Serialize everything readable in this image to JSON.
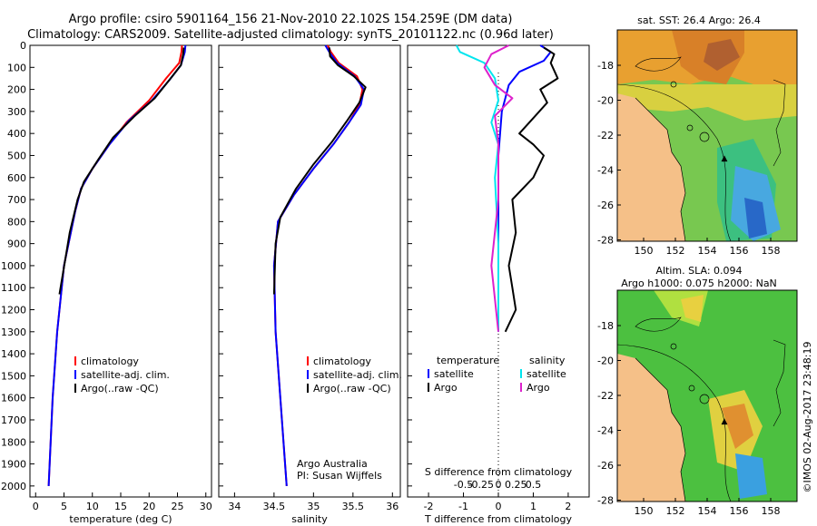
{
  "header": {
    "line1": "Argo profile: csiro 5901164_156 21-Nov-2010 22.102S 154.259E (DM data)",
    "line2": "Climatology: CARS2009. Satellite-adjusted climatology: synTS_20101122.nc (0.96d later)"
  },
  "colors": {
    "climatology": "#ff0000",
    "satellite": "#0000ff",
    "argo": "#000000",
    "satellite_s": "#00e5ee",
    "argo_s": "#dd22cc"
  },
  "chart_data": [
    {
      "type": "line",
      "id": "temperature",
      "xlabel": "temperature (deg C)",
      "ylabel": "depth",
      "xlim": [
        -1,
        31
      ],
      "ylim": [
        2050,
        0
      ],
      "xticks": [
        0,
        5,
        10,
        15,
        20,
        25,
        30
      ],
      "yticks": [
        0,
        100,
        200,
        300,
        400,
        500,
        600,
        700,
        800,
        900,
        1000,
        1100,
        1200,
        1300,
        1400,
        1500,
        1600,
        1700,
        1800,
        1900,
        2000
      ],
      "legend": [
        "climatology",
        "satellite-adj. clim.",
        "Argo(..raw -QC)"
      ],
      "series": [
        {
          "name": "climatology",
          "color": "#ff0000",
          "points": [
            [
              25.8,
              0
            ],
            [
              25.7,
              30
            ],
            [
              25.3,
              80
            ],
            [
              23,
              150
            ],
            [
              20,
              250
            ],
            [
              16,
              350
            ],
            [
              13,
              450
            ],
            [
              10,
              560
            ],
            [
              8,
              650
            ],
            [
              7,
              750
            ],
            [
              5,
              1000
            ],
            [
              3.8,
              1300
            ],
            [
              3,
              1600
            ],
            [
              2.3,
              2000
            ]
          ]
        },
        {
          "name": "satellite-adj. clim.",
          "color": "#0000ff",
          "points": [
            [
              26.4,
              0
            ],
            [
              26.3,
              30
            ],
            [
              25.6,
              90
            ],
            [
              23.5,
              160
            ],
            [
              20.5,
              250
            ],
            [
              16.5,
              340
            ],
            [
              13,
              450
            ],
            [
              10,
              560
            ],
            [
              8,
              650
            ],
            [
              7,
              750
            ],
            [
              5,
              1000
            ],
            [
              3.8,
              1300
            ],
            [
              3,
              1600
            ],
            [
              2.3,
              2000
            ]
          ]
        },
        {
          "name": "Argo(..raw -QC)",
          "color": "#000000",
          "points": [
            [
              26.1,
              10
            ],
            [
              26,
              40
            ],
            [
              25.6,
              90
            ],
            [
              23.8,
              150
            ],
            [
              21,
              240
            ],
            [
              17.5,
              320
            ],
            [
              13.6,
              420
            ],
            [
              11,
              520
            ],
            [
              8.5,
              620
            ],
            [
              7.4,
              700
            ],
            [
              6,
              850
            ],
            [
              4.2,
              1130
            ]
          ]
        }
      ]
    },
    {
      "type": "line",
      "id": "salinity",
      "xlabel": "salinity",
      "xlim": [
        33.8,
        36.1
      ],
      "ylim": [
        2050,
        0
      ],
      "xticks": [
        34,
        34.5,
        35,
        35.5,
        36
      ],
      "legend": [
        "climatology",
        "satellite-adj. clim.",
        "Argo(..raw -QC)"
      ],
      "annotations": [
        "Argo Australia",
        "PI: Susan Wijffels"
      ],
      "series": [
        {
          "name": "climatology",
          "color": "#ff0000",
          "points": [
            [
              35.18,
              0
            ],
            [
              35.22,
              30
            ],
            [
              35.32,
              80
            ],
            [
              35.55,
              140
            ],
            [
              35.62,
              200
            ],
            [
              35.58,
              270
            ],
            [
              35.45,
              350
            ],
            [
              35.25,
              450
            ],
            [
              35,
              560
            ],
            [
              34.75,
              680
            ],
            [
              34.55,
              800
            ],
            [
              34.5,
              1000
            ],
            [
              34.52,
              1300
            ],
            [
              34.58,
              1600
            ],
            [
              34.66,
              2000
            ]
          ]
        },
        {
          "name": "satellite-adj. clim.",
          "color": "#0000ff",
          "points": [
            [
              35.15,
              0
            ],
            [
              35.2,
              30
            ],
            [
              35.3,
              80
            ],
            [
              35.52,
              140
            ],
            [
              35.64,
              200
            ],
            [
              35.6,
              270
            ],
            [
              35.45,
              350
            ],
            [
              35.25,
              450
            ],
            [
              35,
              560
            ],
            [
              34.75,
              680
            ],
            [
              34.55,
              800
            ],
            [
              34.5,
              1000
            ],
            [
              34.52,
              1300
            ],
            [
              34.58,
              1600
            ],
            [
              34.66,
              2000
            ]
          ]
        },
        {
          "name": "Argo(..raw -QC)",
          "color": "#000000",
          "points": [
            [
              35.2,
              10
            ],
            [
              35.21,
              50
            ],
            [
              35.31,
              90
            ],
            [
              35.51,
              140
            ],
            [
              35.66,
              190
            ],
            [
              35.58,
              260
            ],
            [
              35.43,
              340
            ],
            [
              35.23,
              440
            ],
            [
              35,
              540
            ],
            [
              34.78,
              650
            ],
            [
              34.58,
              780
            ],
            [
              34.52,
              900
            ],
            [
              34.5,
              1130
            ]
          ]
        }
      ]
    },
    {
      "type": "line",
      "id": "difference",
      "xlabel": "T difference from climatology",
      "xlabel_top": "S difference from climatology",
      "xlim": [
        -2.6,
        2.6
      ],
      "ylim": [
        2050,
        0
      ],
      "xticks": [
        -2,
        -1,
        0,
        1,
        2
      ],
      "xticks_s": [
        "-0.5",
        "-0.25",
        "0",
        "0.25",
        "0.5"
      ],
      "legend_t_title": "temperature",
      "legend_s_title": "salinity",
      "legend_t": [
        "satellite",
        "Argo"
      ],
      "legend_s": [
        "satellite",
        "Argo"
      ],
      "series": [
        {
          "name": "T satellite",
          "color": "#0000ff",
          "points": [
            [
              1.2,
              0
            ],
            [
              1.5,
              30
            ],
            [
              1.3,
              70
            ],
            [
              0.6,
              120
            ],
            [
              0.3,
              180
            ],
            [
              0.1,
              300
            ],
            [
              0,
              500
            ],
            [
              0,
              800
            ],
            [
              0,
              1200
            ],
            [
              0,
              1300
            ]
          ]
        },
        {
          "name": "T Argo",
          "color": "#000000",
          "points": [
            [
              1.3,
              10
            ],
            [
              1.6,
              40
            ],
            [
              1.5,
              80
            ],
            [
              1.7,
              150
            ],
            [
              1.2,
              200
            ],
            [
              1.4,
              260
            ],
            [
              1.0,
              330
            ],
            [
              0.6,
              400
            ],
            [
              1.0,
              450
            ],
            [
              1.3,
              500
            ],
            [
              1.0,
              600
            ],
            [
              0.4,
              700
            ],
            [
              0.5,
              850
            ],
            [
              0.3,
              1000
            ],
            [
              0.4,
              1100
            ],
            [
              0.5,
              1200
            ],
            [
              0.2,
              1300
            ]
          ]
        },
        {
          "name": "S satellite",
          "color": "#00e5ee",
          "points": [
            [
              -1.2,
              0
            ],
            [
              -1.1,
              30
            ],
            [
              -0.4,
              80
            ],
            [
              -0.1,
              150
            ],
            [
              0,
              250
            ],
            [
              -0.2,
              350
            ],
            [
              0,
              450
            ],
            [
              -0.1,
              600
            ],
            [
              0,
              900
            ],
            [
              0,
              1300
            ]
          ]
        },
        {
          "name": "S Argo",
          "color": "#dd22cc",
          "points": [
            [
              0.3,
              0
            ],
            [
              -0.2,
              40
            ],
            [
              -0.4,
              100
            ],
            [
              -0.1,
              180
            ],
            [
              0.4,
              240
            ],
            [
              -0.1,
              320
            ],
            [
              0,
              450
            ],
            [
              0,
              700
            ],
            [
              -0.2,
              1000
            ],
            [
              0,
              1300
            ]
          ]
        }
      ]
    }
  ],
  "maps": {
    "sst": {
      "title": "sat. SST: 26.4  Argo: 26.4",
      "xticks": [
        "150",
        "152",
        "154",
        "156",
        "158"
      ],
      "yticks": [
        "-18",
        "-20",
        "-22",
        "-24",
        "-26",
        "-28"
      ]
    },
    "sla": {
      "title1": "Altim. SLA: 0.094",
      "title2": "Argo h1000: 0.075  h2000: NaN",
      "xticks": [
        "150",
        "152",
        "154",
        "156",
        "158"
      ],
      "yticks": [
        "-18",
        "-20",
        "-22",
        "-24",
        "-26",
        "-28"
      ]
    }
  },
  "credit": "©IMOS 02-Aug-2017 23:48:19"
}
